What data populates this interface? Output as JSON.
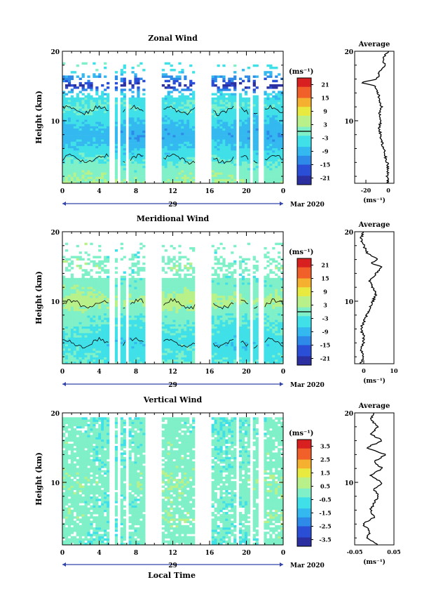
{
  "figure": {
    "xlabel_bottom": "Local Time",
    "date_label": "Mar 2020",
    "day_label": "29",
    "colorbar_unit": "(ms⁻¹)",
    "average_title": "Average",
    "average_unit": "(ms⁻¹)"
  },
  "chart_data": [
    {
      "type": "heatmap",
      "title": "Zonal Wind",
      "ylabel": "Height (km)",
      "xlabel": "Local Time",
      "x_ticks": [
        "0",
        "4",
        "8",
        "12",
        "16",
        "20",
        "0"
      ],
      "xlim": [
        0,
        24
      ],
      "y_ticks": [
        "10",
        "20"
      ],
      "ylim": [
        1,
        20
      ],
      "contour_level": 0,
      "colorbar_ticks": [
        "21",
        "15",
        "9",
        "3",
        "-3",
        "-9",
        "-15",
        "-21"
      ],
      "colorbar_range": [
        -24,
        24
      ],
      "data_gaps_hours": [
        [
          5.2,
          5.6
        ],
        [
          6.0,
          6.4
        ],
        [
          6.9,
          7.2
        ],
        [
          9.0,
          10.8
        ],
        [
          14.5,
          16.3
        ],
        [
          18.8,
          19.2
        ],
        [
          20.3,
          20.7
        ],
        [
          21.4,
          21.8
        ]
      ],
      "field_by_height": {
        "height_km": [
          1,
          2,
          3,
          4,
          5,
          6,
          7,
          8,
          9,
          10,
          11,
          12,
          13,
          14,
          15,
          16,
          17,
          18
        ],
        "value_ms": [
          2,
          1,
          0,
          -2,
          -4,
          -6,
          -8,
          -10,
          -8,
          -6,
          -4,
          -2,
          -4,
          -6,
          -22,
          -14,
          -6,
          -2
        ]
      },
      "average_profile": {
        "xlim": [
          -30,
          5
        ],
        "x_ticks": [
          "-20",
          "0"
        ],
        "y_ticks": [
          "10",
          "20"
        ],
        "height_km": [
          1,
          2,
          3,
          4,
          5,
          6,
          7,
          8,
          9,
          10,
          11,
          12,
          13,
          14,
          15,
          15.5,
          16,
          17,
          18,
          19,
          20
        ],
        "value_ms": [
          0,
          -1,
          0,
          -1,
          -3,
          -4,
          -6,
          -7,
          -8,
          -7,
          -8,
          -6,
          -8,
          -9,
          -12,
          -25,
          -10,
          -8,
          -3,
          -5,
          0
        ]
      }
    },
    {
      "type": "heatmap",
      "title": "Meridional Wind",
      "ylabel": "Height (km)",
      "xlabel": "Local Time",
      "x_ticks": [
        "0",
        "4",
        "8",
        "12",
        "16",
        "20",
        "0"
      ],
      "xlim": [
        0,
        24
      ],
      "y_ticks": [
        "10",
        "20"
      ],
      "ylim": [
        1,
        20
      ],
      "contour_level": 0,
      "colorbar_ticks": [
        "21",
        "15",
        "9",
        "3",
        "-3",
        "-9",
        "-15",
        "-21"
      ],
      "colorbar_range": [
        -24,
        24
      ],
      "data_gaps_hours": [
        [
          5.2,
          5.6
        ],
        [
          6.0,
          6.4
        ],
        [
          6.9,
          7.2
        ],
        [
          9.0,
          10.8
        ],
        [
          14.5,
          16.3
        ],
        [
          18.8,
          19.2
        ],
        [
          20.3,
          20.7
        ],
        [
          21.4,
          21.8
        ]
      ],
      "field_by_height": {
        "height_km": [
          1,
          2,
          3,
          4,
          5,
          6,
          7,
          8,
          9,
          10,
          11,
          12,
          13,
          14,
          15,
          16,
          17,
          18
        ],
        "value_ms": [
          -2,
          -3,
          -4,
          -5,
          -4,
          -3,
          -2,
          -1,
          1,
          4,
          2,
          0,
          -1,
          0,
          1,
          0,
          -1,
          0
        ]
      },
      "average_profile": {
        "xlim": [
          -3,
          10
        ],
        "x_ticks": [
          "0",
          "10"
        ],
        "y_ticks": [
          "10",
          "20"
        ],
        "height_km": [
          1,
          2,
          3,
          4,
          5,
          6,
          7,
          8,
          9,
          10,
          11,
          12,
          13,
          14,
          15,
          15.5,
          16,
          17,
          18,
          19,
          20
        ],
        "value_ms": [
          -1,
          0,
          -1,
          0,
          0,
          -1,
          0,
          1,
          2,
          3,
          4,
          3,
          2,
          4,
          6,
          2,
          5,
          1,
          0,
          -1,
          0
        ]
      }
    },
    {
      "type": "heatmap",
      "title": "Vertical Wind",
      "ylabel": "Height (km)",
      "xlabel": "Local Time",
      "x_ticks": [
        "0",
        "4",
        "8",
        "12",
        "16",
        "20",
        "0"
      ],
      "xlim": [
        0,
        24
      ],
      "y_ticks": [
        "10",
        "20"
      ],
      "ylim": [
        1,
        20
      ],
      "colorbar_ticks": [
        "3.5",
        "2.5",
        "1.5",
        "0.5",
        "-0.5",
        "-1.5",
        "-2.5",
        "-3.5"
      ],
      "colorbar_range": [
        -4,
        4
      ],
      "data_gaps_hours": [
        [
          5.2,
          5.6
        ],
        [
          6.0,
          6.4
        ],
        [
          6.9,
          7.2
        ],
        [
          9.0,
          10.8
        ],
        [
          14.5,
          16.3
        ],
        [
          18.8,
          19.2
        ],
        [
          20.3,
          20.7
        ],
        [
          21.4,
          21.8
        ]
      ],
      "field_by_height": {
        "height_km": [
          1,
          2,
          3,
          4,
          5,
          6,
          7,
          8,
          9,
          10,
          11,
          12,
          13,
          14,
          15,
          16,
          17,
          18,
          19
        ],
        "value_ms": [
          -0.2,
          -0.1,
          -0.1,
          0.0,
          0.1,
          0.0,
          -0.1,
          0.0,
          0.1,
          0.2,
          0.1,
          0.0,
          -0.1,
          0.0,
          -0.1,
          0.0,
          -0.2,
          -0.1,
          -0.2
        ]
      },
      "average_profile": {
        "xlim": [
          -0.05,
          0.05
        ],
        "x_ticks": [
          "-0.05",
          "0.05"
        ],
        "y_ticks": [
          "10",
          "20"
        ],
        "height_km": [
          1,
          2,
          3,
          4,
          5,
          6,
          7,
          8,
          9,
          10,
          11,
          12,
          13,
          14,
          15,
          16,
          17,
          18,
          19,
          20
        ],
        "value_ms": [
          0.01,
          -0.02,
          -0.01,
          -0.03,
          0.0,
          -0.01,
          0.0,
          0.01,
          0.0,
          0.02,
          -0.01,
          0.02,
          0.0,
          0.03,
          -0.02,
          0.02,
          -0.01,
          0.01,
          -0.01,
          0.0
        ]
      }
    }
  ],
  "colors": {
    "colormap": [
      "#2b2fa0",
      "#2a4fd6",
      "#2e8ae8",
      "#34b8f0",
      "#40e0e8",
      "#7ff0c8",
      "#b8f08a",
      "#e8ea40",
      "#f5b030",
      "#f06028",
      "#d82020"
    ],
    "contour": "#000000",
    "profile_line": "#000000",
    "axis": "#000000",
    "date_axis": "#3344aa"
  }
}
